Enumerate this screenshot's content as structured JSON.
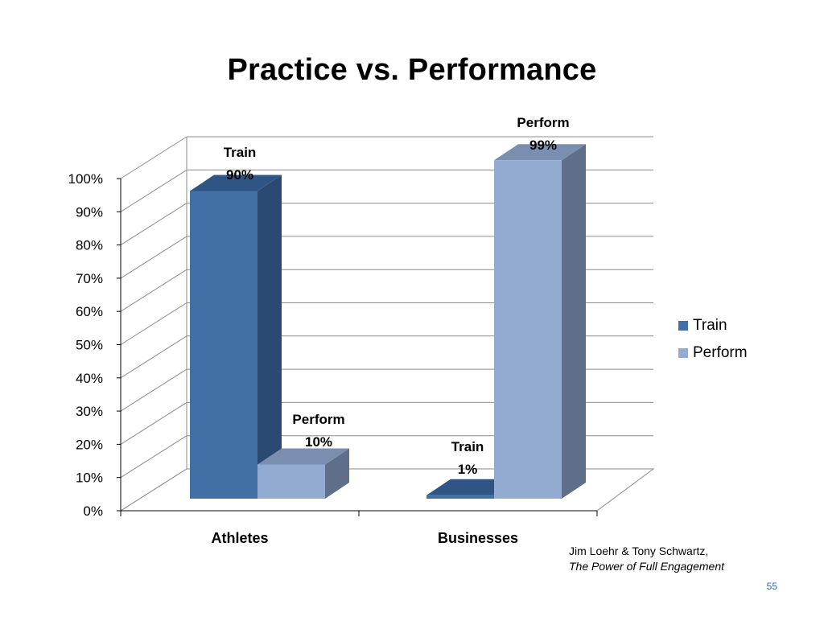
{
  "slide": {
    "title": "Practice vs. Performance",
    "source_authors": "Jim Loehr & Tony Schwartz,",
    "source_book": "The Power of Full Engagement",
    "page_number": "55"
  },
  "chart_data": {
    "type": "bar",
    "style": "3d-clustered-column",
    "title": "",
    "xlabel": "",
    "ylabel": "",
    "categories": [
      "Athletes",
      "Businesses"
    ],
    "series": [
      {
        "name": "Train",
        "values": [
          90,
          1
        ],
        "color": "#416fa6",
        "top_color": "#2f5585",
        "side_color": "#2b4a72"
      },
      {
        "name": "Perform",
        "values": [
          10,
          99
        ],
        "color": "#94abd1",
        "top_color": "#7a8eb0",
        "side_color": "#5f6f8a"
      }
    ],
    "data_labels": [
      [
        "Train",
        "90%"
      ],
      [
        "Perform",
        "10%"
      ],
      [
        "Train",
        "1%"
      ],
      [
        "Perform",
        "99%"
      ]
    ],
    "ylim": [
      0,
      100
    ],
    "yticks": [
      "0%",
      "10%",
      "20%",
      "30%",
      "40%",
      "50%",
      "60%",
      "70%",
      "80%",
      "90%",
      "100%"
    ],
    "grid": true,
    "legend": "right"
  }
}
